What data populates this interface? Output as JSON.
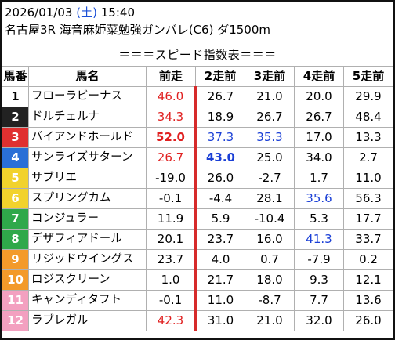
{
  "header": {
    "date": "2026/01/03",
    "dow_open": "(",
    "dow": "土",
    "dow_close": ")",
    "time": "15:40",
    "race": "名古屋3R 海音麻姫菜勉強ガンバレ(C6) ダ1500m"
  },
  "subtitle": "＝＝＝スピード指数表＝＝＝",
  "columns": [
    "馬番",
    "馬名",
    "前走",
    "2走前",
    "3走前",
    "4走前",
    "5走前"
  ],
  "colors": {
    "frame1": "#ffffff",
    "frame2": "#222222",
    "frame3": "#e03030",
    "frame4": "#2a6fd6",
    "frame5": "#f2d22c",
    "frame6": "#2fa84a",
    "frame7": "#f39a2a",
    "frame8": "#f3a0c0",
    "highlight_red": "#e02020",
    "highlight_blue": "#1a3fd6"
  },
  "rows": [
    {
      "num": "1",
      "name": "フローラビーナス",
      "v": [
        "46.0",
        "26.7",
        "21.0",
        "20.0",
        "29.9"
      ]
    },
    {
      "num": "2",
      "name": "ドルチェルナ",
      "v": [
        "34.3",
        "18.9",
        "26.7",
        "26.7",
        "48.4"
      ]
    },
    {
      "num": "3",
      "name": "バイアンドホールド",
      "v": [
        "52.0",
        "37.3",
        "35.3",
        "17.0",
        "13.3"
      ]
    },
    {
      "num": "4",
      "name": "サンライズサターン",
      "v": [
        "26.7",
        "43.0",
        "25.0",
        "34.0",
        "2.7"
      ]
    },
    {
      "num": "5",
      "name": "サブリエ",
      "v": [
        "-19.0",
        "26.0",
        "-2.7",
        "1.7",
        "11.0"
      ]
    },
    {
      "num": "6",
      "name": "スプリングカム",
      "v": [
        "-0.1",
        "-4.4",
        "28.1",
        "35.6",
        "56.3"
      ]
    },
    {
      "num": "7",
      "name": "コンジュラー",
      "v": [
        "11.9",
        "5.9",
        "-10.4",
        "5.3",
        "17.7"
      ]
    },
    {
      "num": "8",
      "name": "デザフィアドール",
      "v": [
        "20.1",
        "23.7",
        "16.0",
        "41.3",
        "33.7"
      ]
    },
    {
      "num": "9",
      "name": "リジッドウイングス",
      "v": [
        "23.7",
        "4.0",
        "0.7",
        "-7.9",
        "0.2"
      ]
    },
    {
      "num": "10",
      "name": "ロジスクリーン",
      "v": [
        "1.0",
        "21.7",
        "18.0",
        "9.3",
        "12.1"
      ]
    },
    {
      "num": "11",
      "name": "キャンディタフト",
      "v": [
        "-0.1",
        "11.0",
        "-8.7",
        "7.7",
        "13.6"
      ]
    },
    {
      "num": "12",
      "name": "ラブレガル",
      "v": [
        "42.3",
        "31.0",
        "21.0",
        "32.0",
        "26.0"
      ]
    }
  ]
}
